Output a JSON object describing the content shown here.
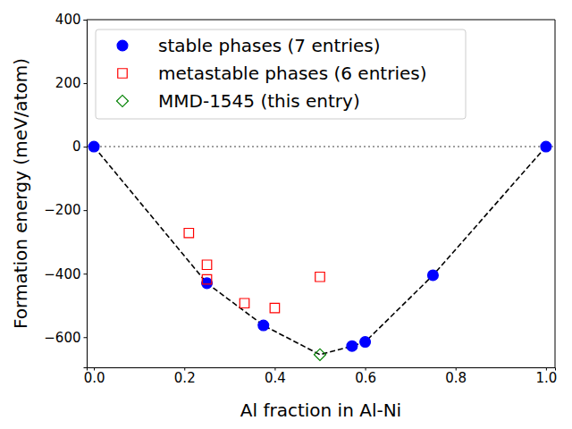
{
  "chart_data": {
    "type": "scatter",
    "x_label": "Al fraction in Al-Ni",
    "y_label": "Formation energy (meV/atom)",
    "xlim": [
      -0.016,
      1.02
    ],
    "ylim": [
      -695,
      400
    ],
    "xticks": [
      {
        "value": 0,
        "label": "0.0"
      },
      {
        "value": 0.2,
        "label": "0.2"
      },
      {
        "value": 0.4,
        "label": "0.4"
      },
      {
        "value": 0.6,
        "label": "0.6"
      },
      {
        "value": 0.8,
        "label": "0.8"
      },
      {
        "value": 1,
        "label": "1.0"
      }
    ],
    "yticks": [
      {
        "value": -600,
        "label": "−600"
      },
      {
        "value": -400,
        "label": "−400"
      },
      {
        "value": -200,
        "label": "−200"
      },
      0,
      200,
      400
    ],
    "legend": "upper left",
    "series": [
      {
        "name": "stable phases (7 entries)",
        "color": "#0000ff",
        "marker": "circle",
        "x": [
          0,
          0.25,
          0.375,
          0.571,
          0.6,
          0.75,
          1
        ],
        "values": [
          0,
          -430,
          -563,
          -628,
          -615,
          -405,
          0
        ]
      },
      {
        "name": "metastable phases (6 entries)",
        "color": "#ff0000",
        "marker": "square",
        "x": [
          0.21,
          0.25,
          0.25,
          0.333,
          0.4,
          0.5
        ],
        "values": [
          -272,
          -372,
          -418,
          -493,
          -508,
          -410
        ]
      },
      {
        "name": "MMD-1545 (this entry)",
        "color": "#008000",
        "marker": "diamond",
        "x": [
          0.5
        ],
        "values": [
          -655
        ]
      }
    ],
    "hull": {
      "color": "#000000",
      "line_style": "dashed",
      "x": [
        0,
        0.25,
        0.375,
        0.5,
        0.571,
        0.6,
        0.75,
        1
      ],
      "values": [
        0,
        -430,
        -563,
        -655,
        -628,
        -615,
        -405,
        0
      ]
    },
    "reference_lines": [
      {
        "value": 0,
        "color": "#808080",
        "line_style": "dotted"
      }
    ]
  }
}
